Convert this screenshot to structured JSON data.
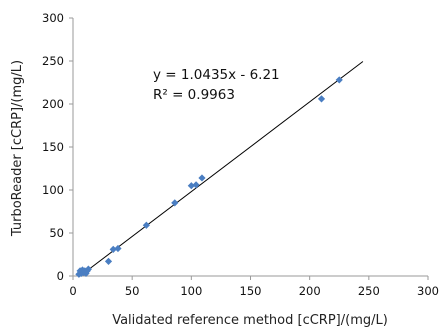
{
  "chart_data": {
    "type": "scatter",
    "title": "",
    "xlabel": "Validated reference method [cCRP]/(mg/L)",
    "ylabel": "TurboReader [cCRP]/(mg/L)",
    "xlim": [
      0,
      300
    ],
    "ylim": [
      0,
      300
    ],
    "x_ticks": [
      "0",
      "50",
      "100",
      "150",
      "200",
      "250",
      "300"
    ],
    "y_ticks": [
      "0",
      "50",
      "100",
      "150",
      "200",
      "250",
      "300"
    ],
    "grid": false,
    "legend": "none",
    "points": [
      {
        "x": 5,
        "y": 2
      },
      {
        "x": 6,
        "y": 6
      },
      {
        "x": 7,
        "y": 3
      },
      {
        "x": 8,
        "y": 7
      },
      {
        "x": 9,
        "y": 4
      },
      {
        "x": 10,
        "y": 6
      },
      {
        "x": 11,
        "y": 3
      },
      {
        "x": 12,
        "y": 6
      },
      {
        "x": 13,
        "y": 8
      },
      {
        "x": 30,
        "y": 17
      },
      {
        "x": 34,
        "y": 31
      },
      {
        "x": 38,
        "y": 32
      },
      {
        "x": 62,
        "y": 59
      },
      {
        "x": 86,
        "y": 85
      },
      {
        "x": 100,
        "y": 105
      },
      {
        "x": 104,
        "y": 106
      },
      {
        "x": 109,
        "y": 114
      },
      {
        "x": 210,
        "y": 206
      },
      {
        "x": 225,
        "y": 228
      }
    ],
    "trendline": {
      "slope": 1.0435,
      "intercept": -6.21,
      "x_range": [
        5,
        245
      ]
    },
    "annotations": [
      "y = 1.0435x - 6.21",
      "R² = 0.9963"
    ],
    "marker_color": "#4a7ec2",
    "line_color": "#000000"
  }
}
